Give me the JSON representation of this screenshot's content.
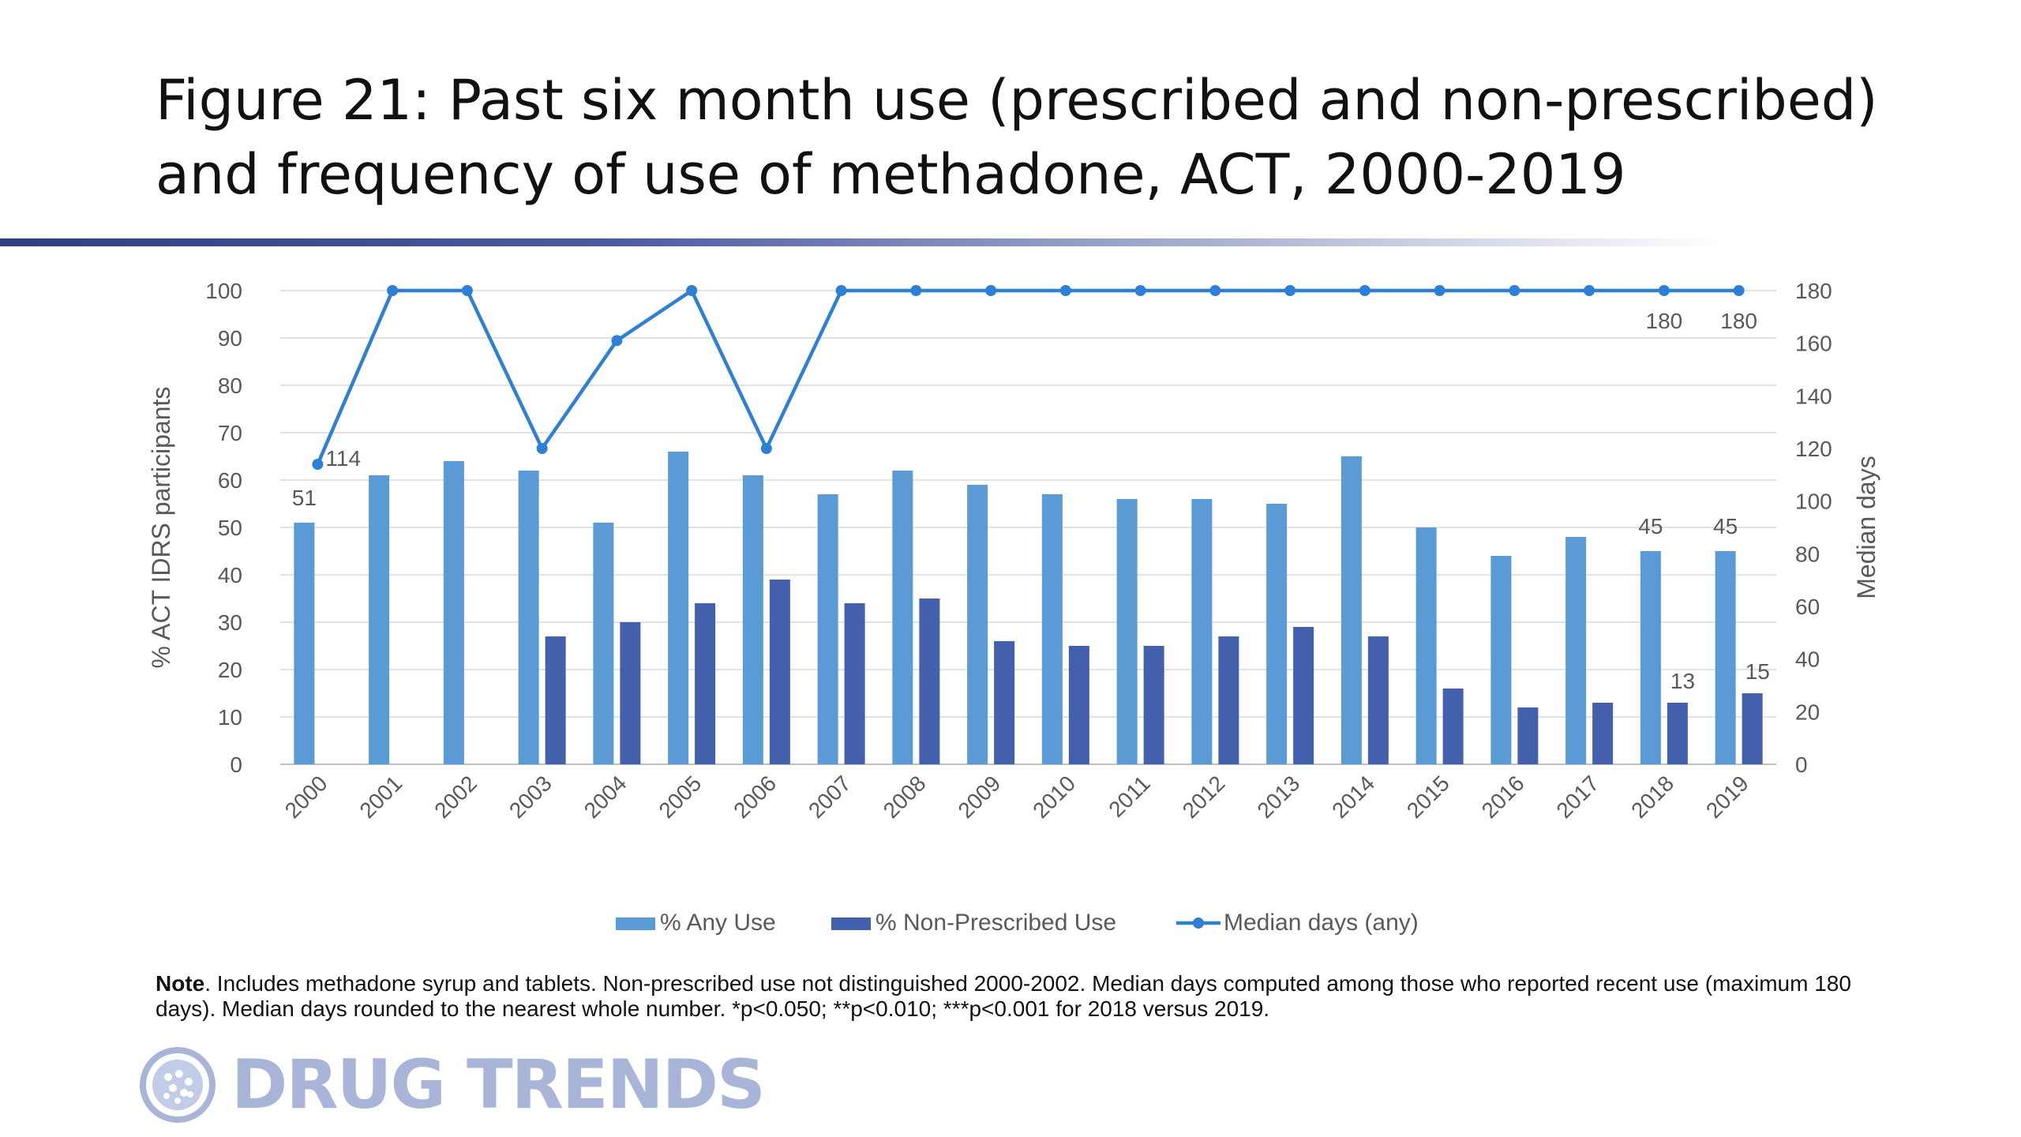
{
  "title": "Figure 21: Past six month use (prescribed and non-prescribed) and frequency of use of methadone, ACT, 2000-2019",
  "colors": {
    "any_use": "#5b9bd5",
    "non_prescribed": "#4360ad",
    "median_line": "#2e7fd6",
    "title_bar": "#2e3f86",
    "logo": "#a9b5d8"
  },
  "chart_data": {
    "type": "bar",
    "categories": [
      "2000",
      "2001",
      "2002",
      "2003",
      "2004",
      "2005",
      "2006",
      "2007",
      "2008",
      "2009",
      "2010",
      "2011",
      "2012",
      "2013",
      "2014",
      "2015",
      "2016",
      "2017",
      "2018",
      "2019"
    ],
    "series": [
      {
        "name": "% Any Use",
        "type": "bar",
        "axis": "left",
        "values": [
          51,
          61,
          64,
          62,
          51,
          66,
          61,
          57,
          62,
          59,
          57,
          56,
          56,
          55,
          65,
          50,
          44,
          48,
          45,
          45
        ]
      },
      {
        "name": "% Non-Prescribed Use",
        "type": "bar",
        "axis": "left",
        "values": [
          null,
          null,
          null,
          27,
          30,
          34,
          39,
          34,
          35,
          26,
          25,
          25,
          27,
          29,
          27,
          16,
          12,
          13,
          13,
          15
        ]
      },
      {
        "name": "Median days (any)",
        "type": "line",
        "axis": "right",
        "values": [
          114,
          180,
          180,
          120,
          161,
          180,
          120,
          180,
          180,
          180,
          180,
          180,
          180,
          180,
          180,
          180,
          180,
          180,
          180,
          180
        ]
      }
    ],
    "data_labels": {
      "any_use": [
        {
          "year": "2000",
          "text": "51"
        },
        {
          "year": "2018",
          "text": "45"
        },
        {
          "year": "2019",
          "text": "45"
        }
      ],
      "non_prescribed": [
        {
          "year": "2018",
          "text": "13"
        },
        {
          "year": "2019",
          "text": "15"
        }
      ],
      "median": [
        {
          "year": "2000",
          "text": "114"
        },
        {
          "year": "2018",
          "text": "180"
        },
        {
          "year": "2019",
          "text": "180"
        }
      ]
    },
    "ylabel": "% ACT IDRS participants",
    "ylabel_right": "Median days",
    "ylim": [
      0,
      100
    ],
    "ylim_right": [
      0,
      180
    ],
    "yticks": [
      "0",
      "10",
      "20",
      "30",
      "40",
      "50",
      "60",
      "70",
      "80",
      "90",
      "100"
    ],
    "yticks_right": [
      "0",
      "20",
      "40",
      "60",
      "80",
      "100",
      "120",
      "140",
      "160",
      "180"
    ],
    "grid": true,
    "legend": "bottom",
    "legend_labels": [
      "% Any Use",
      "% Non-Prescribed Use",
      "Median days (any)"
    ]
  },
  "note": {
    "lead": "Note",
    "text": ". Includes methadone syrup and tablets. Non-prescribed use not distinguished 2000-2002. Median days computed among those who reported recent use (maximum 180 days). Median days rounded to the nearest whole number. *p<0.050; **p<0.010; ***p<0.001 for 2018 versus 2019."
  },
  "logo": {
    "text": "DRUG TRENDS",
    "icon": "globe-icon"
  }
}
